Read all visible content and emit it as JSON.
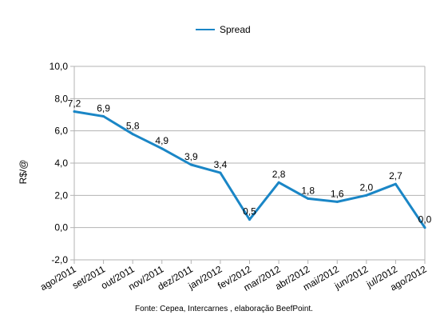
{
  "chart_data": {
    "type": "line",
    "title": "",
    "xlabel": "",
    "ylabel": "R$/@",
    "categories": [
      "ago/2011",
      "set/2011",
      "out/2011",
      "nov/2011",
      "dez/2011",
      "jan/2012",
      "fev/2012",
      "mar/2012",
      "abr/2012",
      "mai/2012",
      "jun/2012",
      "jul/2012",
      "ago/2012"
    ],
    "series": [
      {
        "name": "Spread",
        "color": "#1a86c6",
        "values": [
          7.2,
          6.9,
          5.8,
          4.9,
          3.9,
          3.4,
          0.5,
          2.8,
          1.8,
          1.6,
          2.0,
          2.7,
          0.0
        ],
        "labels": [
          "7,2",
          "6,9",
          "5,8",
          "4,9",
          "3,9",
          "3,4",
          "0,5",
          "2,8",
          "1,8",
          "1,6",
          "2,0",
          "2,7",
          "0,0"
        ]
      }
    ],
    "ylim": [
      -2,
      10
    ],
    "yticks": [
      -2,
      0,
      2,
      4,
      6,
      8,
      10
    ],
    "ytick_labels": [
      "-2,0",
      "0,0",
      "2,0",
      "4,0",
      "6,0",
      "8,0",
      "10,0"
    ],
    "grid": true,
    "legend": "top-center"
  },
  "source": "Fonte: Cepea, Intercarnes , elaboração BeefPoint."
}
